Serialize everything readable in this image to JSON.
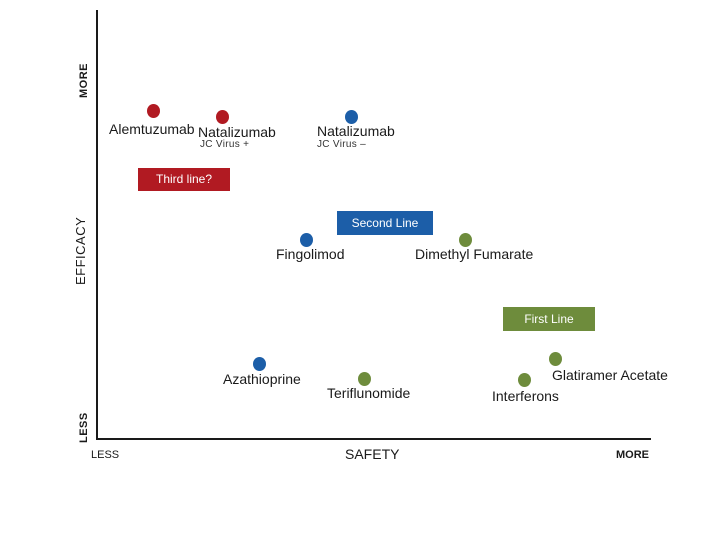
{
  "axes": {
    "y_more": "MORE",
    "y_label": "EFFICACY",
    "y_less": "LESS",
    "x_less": "LESS",
    "x_label": "SAFETY",
    "x_more": "MORE"
  },
  "colors": {
    "red": "#b11a22",
    "blue": "#1c5ea8",
    "green": "#6e8c3c",
    "axis": "#1a1a1a"
  },
  "categories": {
    "third_line": "Third line?",
    "second_line": "Second Line",
    "first_line": "First Line"
  },
  "drugs": {
    "alemtuzumab": "Alemtuzumab",
    "natalizumab_pos": "Natalizumab",
    "natalizumab_pos_sub": "JC Virus +",
    "natalizumab_neg": "Natalizumab",
    "natalizumab_neg_sub": "JC Virus –",
    "fingolimod": "Fingolimod",
    "dimethyl_fumarate": "Dimethyl Fumarate",
    "azathioprine": "Azathioprine",
    "teriflunomide": "Teriflunomide",
    "glatiramer_acetate": "Glatiramer Acetate",
    "interferons": "Interferons"
  }
}
